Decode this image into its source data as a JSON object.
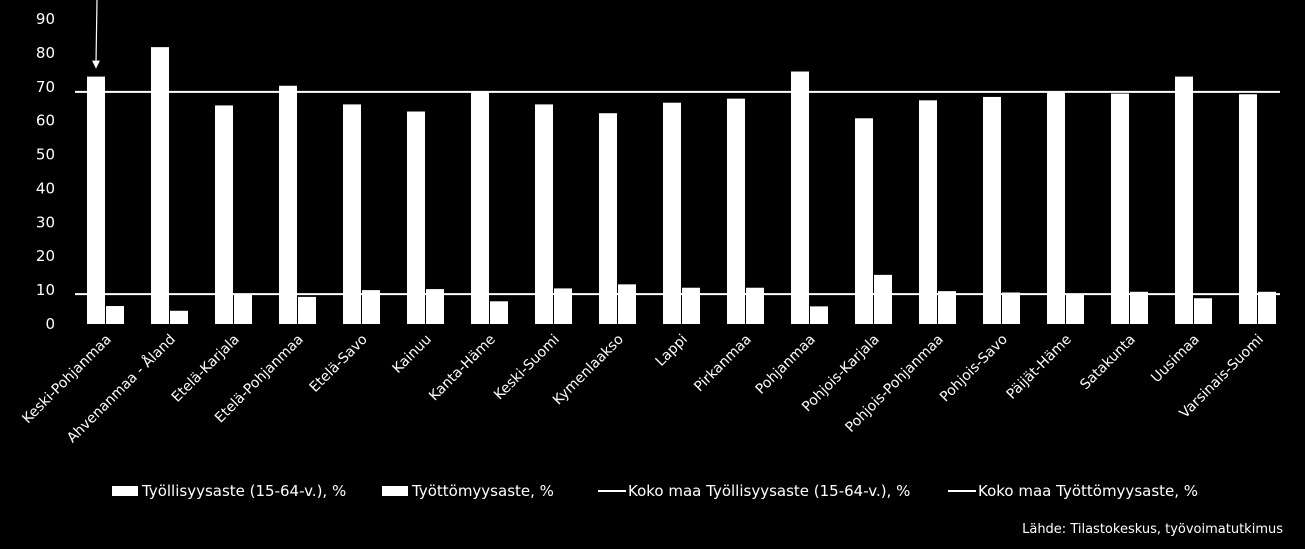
{
  "chart_data": {
    "type": "bar",
    "categories": [
      "Keski-Pohjanmaa",
      "Ahvenanmaa - Åland",
      "Etelä-Karjala",
      "Etelä-Pohjanmaa",
      "Etelä-Savo",
      "Kainuu",
      "Kanta-Häme",
      "Keski-Suomi",
      "Kymenlaakso",
      "Lappi",
      "Pirkanmaa",
      "Pohjanmaa",
      "Pohjois-Karjala",
      "Pohjois-Pohjanmaa",
      "Pohjois-Savo",
      "Päijät-Häme",
      "Satakunta",
      "Uusimaa",
      "Varsinais-Suomi"
    ],
    "series": [
      {
        "name": "Työllisyysaste (15-64-v.), %",
        "values": [
          73.0,
          81.7,
          64.5,
          70.3,
          64.8,
          62.7,
          68.5,
          64.8,
          62.2,
          65.3,
          66.5,
          74.5,
          60.7,
          66.0,
          67.0,
          68.3,
          68.0,
          73.0,
          67.8
        ]
      },
      {
        "name": "Työttömyysaste, %",
        "values": [
          5.3,
          3.9,
          9.0,
          8.0,
          10.0,
          10.3,
          6.7,
          10.5,
          11.7,
          10.7,
          10.7,
          5.2,
          14.5,
          9.7,
          9.3,
          9.0,
          9.5,
          7.6,
          9.5
        ]
      }
    ],
    "reference_lines": [
      {
        "name": "Koko maa Työllisyysaste (15-64-v.), %",
        "value": 68.5
      },
      {
        "name": "Koko maa Työttömyysaste, %",
        "value": 8.8
      }
    ],
    "yticks": [
      "0",
      "10",
      "20",
      "30",
      "40",
      "50",
      "60",
      "70",
      "80",
      "90"
    ],
    "ylim": [
      0,
      90
    ],
    "highlight_category": "Keski-Pohjanmaa",
    "legend_position": "bottom",
    "grid": false,
    "colors": {
      "background": "#000000",
      "bars": "#ffffff",
      "text": "#ffffff"
    }
  },
  "legend": {
    "items": [
      "Työllisyysaste (15-64-v.), %",
      "Työttömyysaste, %",
      "Koko maa Työllisyysaste (15-64-v.), %",
      "Koko maa Työttömyysaste, %"
    ]
  },
  "source": "Lähde: Tilastokeskus, työvoimatutkimus"
}
